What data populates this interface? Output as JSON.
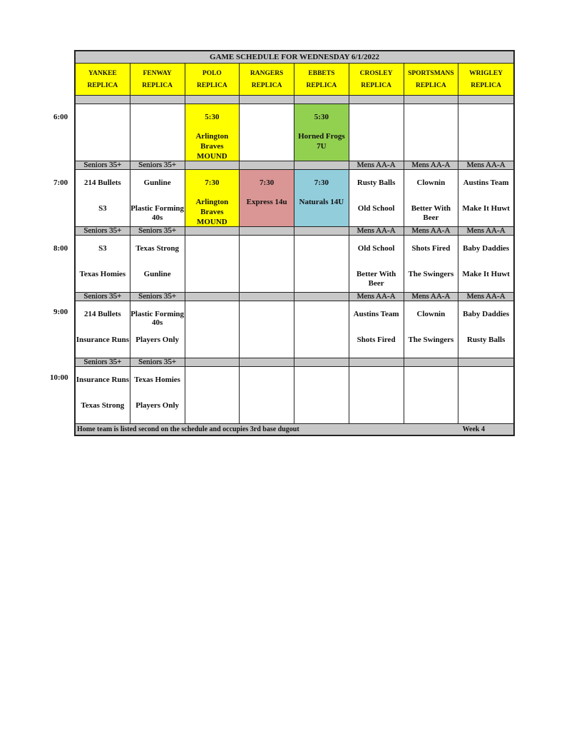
{
  "title": "GAME SCHEDULE FOR WEDNESDAY 6/1/2022",
  "fields": [
    {
      "name": "YANKEE",
      "sub": "REPLICA"
    },
    {
      "name": "FENWAY",
      "sub": "REPLICA"
    },
    {
      "name": "POLO",
      "sub": "REPLICA"
    },
    {
      "name": "RANGERS",
      "sub": "REPLICA"
    },
    {
      "name": "EBBETS",
      "sub": "REPLICA"
    },
    {
      "name": "CROSLEY",
      "sub": "REPLICA"
    },
    {
      "name": "SPORTSMANS",
      "sub": "REPLICA"
    },
    {
      "name": "WRIGLEY",
      "sub": "REPLICA"
    }
  ],
  "colors": {
    "header": "#ffff00",
    "divider": "#c8c8c8",
    "yellow": "#ffff00",
    "green": "#92d050",
    "pink": "#da9694",
    "blue": "#92cddc"
  },
  "slots": [
    {
      "time": "6:00",
      "divisions": [
        "",
        "",
        "",
        "",
        "",
        "",
        "",
        ""
      ],
      "cells": [
        {},
        {},
        {
          "color": "yellow",
          "time": "5:30",
          "team": "Arlington Braves MOUND"
        },
        {},
        {
          "color": "green",
          "time": "5:30",
          "team": "Horned Frogs 7U"
        },
        {},
        {},
        {}
      ]
    },
    {
      "time": "7:00",
      "divisions": [
        "Seniors 35+",
        "Seniors 35+",
        "",
        "",
        "",
        "Mens AA-A",
        "Mens AA-A",
        "Mens AA-A"
      ],
      "cells": [
        {
          "top": "214 Bullets",
          "bottom": "S3"
        },
        {
          "top": "Gunline",
          "bottom": "Plastic Forming 40s"
        },
        {
          "color": "yellow",
          "time": "7:30",
          "team": "Arlington Braves MOUND"
        },
        {
          "color": "pink",
          "time": "7:30",
          "team": "Express 14u"
        },
        {
          "color": "blue",
          "time": "7:30",
          "team": "Naturals 14U"
        },
        {
          "top": "Rusty Balls",
          "bottom": "Old School"
        },
        {
          "top": "Clownin",
          "bottom": "Better With Beer"
        },
        {
          "top": "Austins Team",
          "bottom": "Make It Huwt"
        }
      ]
    },
    {
      "time": "8:00",
      "divisions": [
        "Seniors 35+",
        "Seniors 35+",
        "",
        "",
        "",
        "Mens AA-A",
        "Mens AA-A",
        "Mens AA-A"
      ],
      "cells": [
        {
          "top": "S3",
          "bottom": "Texas Homies"
        },
        {
          "top": "Texas Strong",
          "bottom": "Gunline"
        },
        {},
        {},
        {},
        {
          "top": "Old School",
          "bottom": "Better With Beer"
        },
        {
          "top": "Shots Fired",
          "bottom": "The Swingers"
        },
        {
          "top": "Baby Daddies",
          "bottom": "Make It Huwt"
        }
      ]
    },
    {
      "time": "9:00",
      "divisions": [
        "Seniors 35+",
        "Seniors 35+",
        "",
        "",
        "",
        "Mens AA-A",
        "Mens AA-A",
        "Mens AA-A"
      ],
      "cells": [
        {
          "top": "214 Bullets",
          "bottom": "Insurance Runs"
        },
        {
          "top": "Plastic Forming 40s",
          "bottom": "Players Only"
        },
        {},
        {},
        {},
        {
          "top": "Austins Team",
          "bottom": "Shots Fired"
        },
        {
          "top": "Clownin",
          "bottom": "The Swingers"
        },
        {
          "top": "Baby Daddies",
          "bottom": "Rusty Balls"
        }
      ]
    },
    {
      "time": "10:00",
      "divisions": [
        "Seniors 35+",
        "Seniors 35+",
        "",
        "",
        "",
        "",
        "",
        ""
      ],
      "cells": [
        {
          "top": "Insurance Runs",
          "bottom": "Texas Strong"
        },
        {
          "top": "Texas Homies",
          "bottom": "Players Only"
        },
        {},
        {},
        {},
        {},
        {},
        {}
      ]
    }
  ],
  "footer": {
    "note": "Home team is listed second on the schedule and occupies 3rd base dugout",
    "week": "Week 4"
  }
}
